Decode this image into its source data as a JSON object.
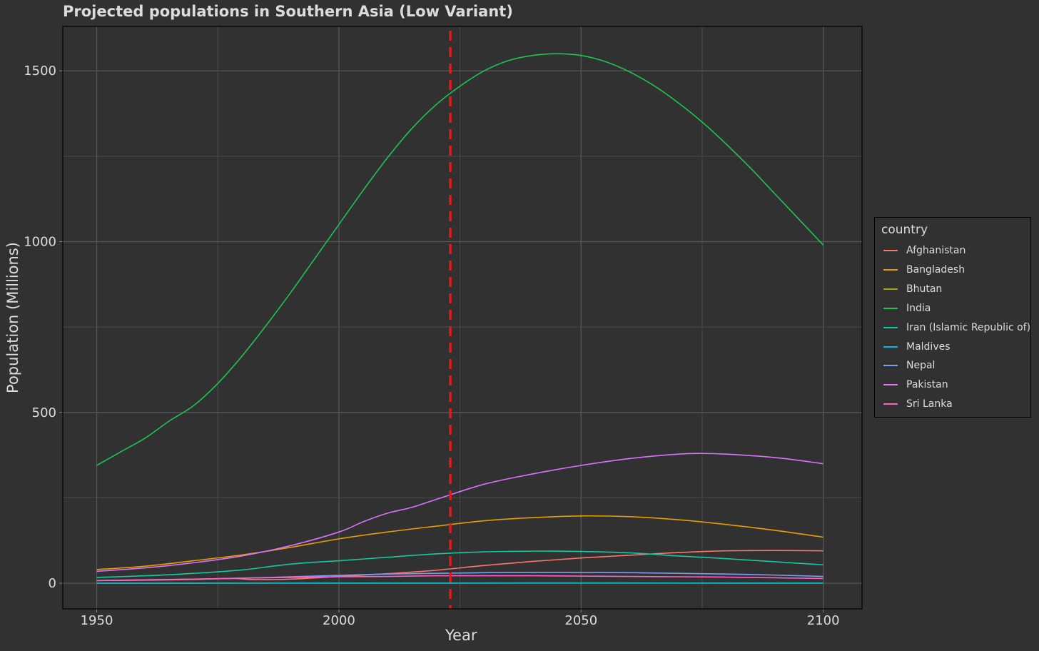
{
  "chart_data": {
    "type": "line",
    "title": "Projected populations in Southern Asia (Low Variant)",
    "xlabel": "Year",
    "ylabel": "Population (Millions)",
    "xlim": [
      1943,
      2108
    ],
    "ylim": [
      -75,
      1630
    ],
    "x_ticks": [
      1950,
      2000,
      2050,
      2100
    ],
    "y_ticks": [
      0,
      500,
      1000,
      1500
    ],
    "grid": true,
    "vline": {
      "x": 2023,
      "color": "#e31a1c",
      "style": "dashed"
    },
    "legend": {
      "title": "country",
      "position": "right"
    },
    "series": [
      {
        "name": "Afghanistan",
        "color": "#f8766d",
        "x": [
          1950,
          1960,
          1970,
          1978,
          1982,
          1990,
          2000,
          2010,
          2020,
          2030,
          2040,
          2050,
          2060,
          2070,
          2080,
          2090,
          2100
        ],
        "y": [
          8,
          9,
          11,
          14,
          11,
          12,
          20,
          28,
          38,
          52,
          64,
          74,
          82,
          90,
          95,
          96,
          95
        ]
      },
      {
        "name": "Bangladesh",
        "color": "#e69f00",
        "x": [
          1950,
          1960,
          1970,
          1980,
          1990,
          2000,
          2010,
          2020,
          2030,
          2040,
          2050,
          2060,
          2070,
          2080,
          2090,
          2100
        ],
        "y": [
          40,
          50,
          66,
          83,
          105,
          130,
          150,
          167,
          183,
          192,
          197,
          195,
          186,
          172,
          155,
          135
        ]
      },
      {
        "name": "Bhutan",
        "color": "#a3a500",
        "x": [
          1950,
          2000,
          2050,
          2100
        ],
        "y": [
          0.2,
          0.6,
          0.8,
          0.6
        ]
      },
      {
        "name": "India",
        "color": "#1fc353",
        "x": [
          1950,
          1955,
          1960,
          1965,
          1970,
          1975,
          1980,
          1985,
          1990,
          1995,
          2000,
          2005,
          2010,
          2015,
          2020,
          2025,
          2030,
          2035,
          2040,
          2045,
          2050,
          2055,
          2060,
          2065,
          2070,
          2075,
          2080,
          2085,
          2090,
          2095,
          2100
        ],
        "y": [
          345,
          385,
          425,
          475,
          520,
          585,
          665,
          755,
          850,
          950,
          1050,
          1150,
          1245,
          1330,
          1400,
          1455,
          1500,
          1530,
          1545,
          1550,
          1545,
          1527,
          1497,
          1457,
          1407,
          1350,
          1285,
          1215,
          1140,
          1065,
          990
        ]
      },
      {
        "name": "Iran (Islamic Republic of)",
        "color": "#14c8a0",
        "x": [
          1950,
          1960,
          1970,
          1980,
          1990,
          2000,
          2010,
          2020,
          2030,
          2040,
          2050,
          2060,
          2070,
          2080,
          2090,
          2100
        ],
        "y": [
          17,
          22,
          29,
          39,
          56,
          66,
          76,
          86,
          92,
          94,
          93,
          89,
          80,
          72,
          63,
          54
        ]
      },
      {
        "name": "Maldives",
        "color": "#00b9e3",
        "x": [
          1950,
          2000,
          2050,
          2100
        ],
        "y": [
          0.1,
          0.3,
          0.5,
          0.4
        ]
      },
      {
        "name": "Nepal",
        "color": "#7f9cf7",
        "x": [
          1950,
          1960,
          1970,
          1980,
          1990,
          2000,
          2010,
          2020,
          2030,
          2040,
          2050,
          2060,
          2070,
          2080,
          2090,
          2100
        ],
        "y": [
          8,
          10,
          12,
          15,
          19,
          23,
          27,
          29,
          31,
          32,
          32,
          31,
          29,
          27,
          24,
          20
        ]
      },
      {
        "name": "Pakistan",
        "color": "#db72fb",
        "x": [
          1950,
          1960,
          1970,
          1980,
          1990,
          2000,
          2005,
          2010,
          2015,
          2020,
          2030,
          2040,
          2050,
          2060,
          2070,
          2075,
          2080,
          2090,
          2100
        ],
        "y": [
          35,
          45,
          60,
          80,
          110,
          150,
          180,
          205,
          222,
          245,
          290,
          320,
          345,
          365,
          378,
          380,
          378,
          368,
          350
        ]
      },
      {
        "name": "Sri Lanka",
        "color": "#ff61c3",
        "x": [
          1950,
          1960,
          1970,
          1980,
          1990,
          2000,
          2010,
          2020,
          2030,
          2040,
          2050,
          2060,
          2070,
          2080,
          2090,
          2100
        ],
        "y": [
          8,
          10,
          12,
          15,
          17,
          19,
          20,
          22,
          22,
          22,
          21,
          20,
          19,
          18,
          16,
          14
        ]
      }
    ]
  }
}
